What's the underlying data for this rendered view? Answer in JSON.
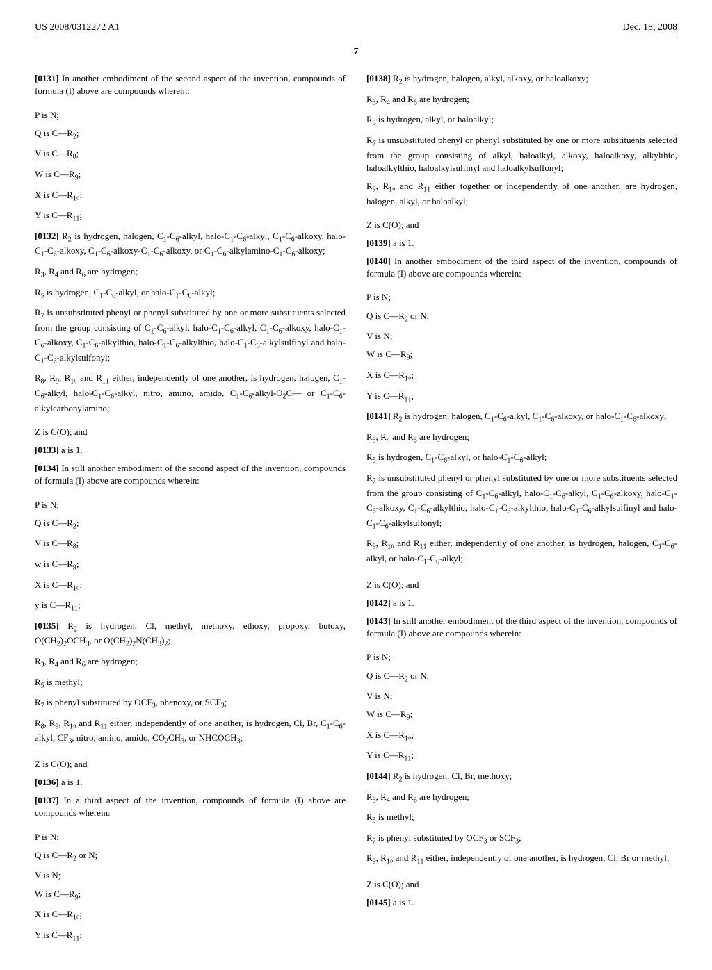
{
  "header": {
    "left": "US 2008/0312272 A1",
    "right": "Dec. 18, 2008"
  },
  "pageNumber": "7",
  "leftColumn": {
    "p0131": "[0131]   In another embodiment of the second aspect of the invention, compounds of formula (I) above are compounds wherein:",
    "pIsN": "P is N;",
    "qIsCR2": "Q is C—R₂;",
    "vIsCR8": "V is C—R₈;",
    "wIsCR9": "W is C—R₉;",
    "xIsCR10": "X is C—R₁₀;",
    "yIsCR11": "Y is C—R₁₁;",
    "p0132": "[0132]   R₂ is hydrogen, halogen, C₁-C₆-alkyl, halo-C₁-C₆-alkyl, C₁-C₆-alkoxy, halo-C₁-C₆-alkoxy, C₁-C₆-alkoxy-C₁-C₆-alkoxy, or C₁-C₆-alkylamino-C₁-C₆-alkoxy;",
    "r3r4r6": "R₃, R₄ and R₆ are hydrogen;",
    "r5a": "R₅ is hydrogen, C₁-C₆-alkyl, or halo-C₁-C₆-alkyl;",
    "r7a": "R₇ is unsubstituted phenyl or phenyl substituted by one or more substituents selected from the group consisting of C₁-C₆-alkyl, halo-C₁-C₆-alkyl, C₁-C₆-alkoxy, halo-C₁-C₆-alkoxy, C₁-C₆-alkylthio, halo-C₁-C₆-alkylthio, halo-C₁-C₆-alkylsulfinyl and halo-C₁-C₆-alkylsulfonyl;",
    "r8r11a": "R₈, R₉, R₁₀ and R₁₁ either, independently of one another, is hydrogen, halogen, C₁-C₆-alkyl, halo-C₁-C₆-alkyl, nitro, amino, amido, C₁-C₆-alkyl-O₂C— or C₁-C₆-alkylcarbonylamino;",
    "zIsCO": "Z is C(O); and",
    "p0133": "[0133]   a is 1.",
    "p0134": "[0134]   In still another embodiment of the second aspect of the invention, compounds of formula (I) above are compounds wherein:",
    "wIsCR9lower": "w is C—R₉;",
    "yIsCR11lower": "y is C—R₁₁;",
    "p0135": "[0135]   R₂ is hydrogen, Cl, methyl, methoxy, ethoxy, propoxy, butoxy, O(CH₂)₂OCH₃, or O(CH₂)₂N(CH₃)₂;",
    "r5methyl": "R₅ is methyl;",
    "r7b": "R₇ is phenyl substituted by OCF₃, phenoxy, or SCF₃;",
    "r8r11b": "R₈, R₉, R₁₀ and R₁₁ either, independently of one another, is hydrogen, Cl, Br, C₁-C₆-alkyl, CF₃, nitro, amino, amido, CO₂CH₃, or NHCOCH₃;",
    "p0136": "[0136]   a is 1.",
    "p0137": "[0137]   In a third aspect of the invention, compounds of formula (I) above are compounds wherein:",
    "qIsCR2orN": "Q is C—R₂ or N;",
    "vIsN": "V is N;"
  },
  "rightColumn": {
    "p0138": "[0138]   R₂ is hydrogen, halogen, alkyl, alkoxy, or haloalkoxy;",
    "r3r4r6b": "R₃, R₄ and R₆ are hydrogen;",
    "r5b": "R₅ is hydrogen, alkyl, or haloalkyl;",
    "r7c": "R₇ is unsubstituted phenyl or phenyl substituted by one or more substituents selected from the group consisting of alkyl, haloalkyl, alkoxy, haloalkoxy, alkylthio, haloalkylthio, haloalkylsulfinyl and haloalkylsulfonyl;",
    "r9r11c": "R₉, R₁₀ and R₁₁ either together or independently of one another, are hydrogen, halogen, alkyl, or haloalkyl;",
    "p0139": "[0139]   a is 1.",
    "p0140": "[0140]   In another embodiment of the third aspect of the invention, compounds of formula (I) above are compounds wherein:",
    "p0141": "[0141]   R₂ is hydrogen, halogen, C₁-C₆-alkyl, C₁-C₆-alkoxy, or halo-C₁-C₆-alkoxy;",
    "r5c": "R₅ is hydrogen, C₁-C₆-alkyl, or halo-C₁-C₆-alkyl;",
    "r7d": "R₇ is unsubstituted phenyl or phenyl substituted by one or more substituents selected from the group consisting of C₁-C₆-alkyl, halo-C₁-C₆-alkyl, C₁-C₆-alkoxy, halo-C₁-C₆-alkoxy, C₁-C₆-alkylthio, halo-C₁-C₆-alkylthio, halo-C₁-C₆-alkylsulfinyl and halo-C₁-C₆-alkylsulfonyl;",
    "r9r11d": "R₉, R₁₀ and R₁₁ either, independently of one another, is hydrogen, halogen, C₁-C₆-alkyl, or halo-C₁-C₆-alkyl;",
    "p0142": "[0142]   a is 1.",
    "p0143": "[0143]   In still another embodiment of the third aspect of the invention, compounds of formula (I) above are compounds wherein:",
    "p0144": "[0144]   R₂ is hydrogen, Cl, Br, methoxy;",
    "r7e": "R₇ is phenyl substituted by OCF₃ or SCF₃;",
    "r9r11e": "R₉, R₁₀ and R₁₁ either, independently of one another, is hydrogen, Cl, Br or methyl;",
    "p0145": "[0145]   a is 1."
  }
}
